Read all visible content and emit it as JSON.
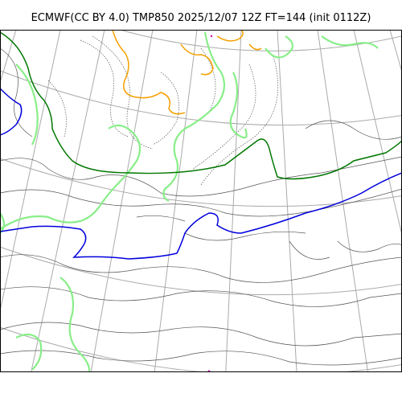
{
  "header": {
    "title": "ECMWF(CC BY 4.0) TMP850 2025/12/07 12Z FT=144 (init 0112Z)"
  },
  "map": {
    "colors": {
      "frame": "#000000",
      "graticule": "#aaaaaa",
      "contour": "#555555",
      "isotherm_zero": "#0000dd",
      "isotherm_green": "#007700",
      "isotherm_lightgreen": "#88ee88",
      "isotherm_orange": "#f5a000"
    }
  }
}
